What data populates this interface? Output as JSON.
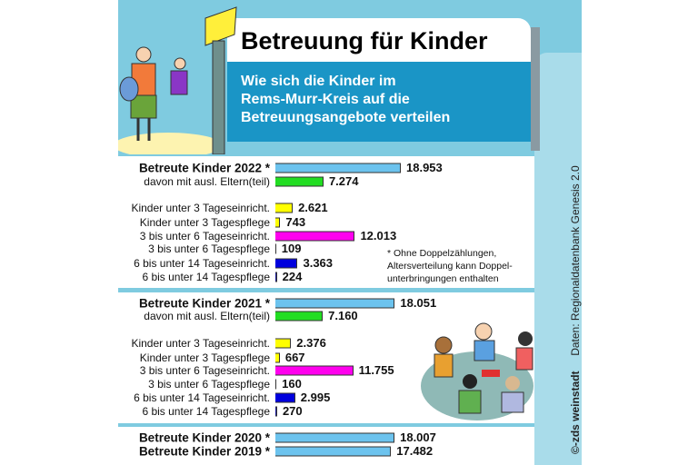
{
  "header": {
    "title": "Betreuung für Kinder",
    "subtitle_lines": [
      "Wie sich die Kinder im",
      "Rems-Murr-Kreis auf die",
      "Betreuungsangebote verteilen"
    ]
  },
  "footnote_lines": [
    "* Ohne Doppelzählungen,",
    "Altersverteilung kann Doppel-",
    "unterbringungen enthalten"
  ],
  "credit": "©-zds weinstadt",
  "source": "Daten: Regionaldatenbank Genesis 2.0",
  "colors": {
    "total": "#6cc3ee",
    "foreign": "#22dd22",
    "u3": "#ffff00",
    "age3to6": "#ff00ee",
    "age6to14": "#0000dd"
  },
  "chart_data": {
    "type": "bar",
    "orientation": "horizontal",
    "title": "Betreuung für Kinder",
    "categories": [
      "Betreute Kinder 2022 *",
      "davon mit ausl. Eltern(teil)",
      "Kinder unter 3 Tageseinricht.",
      "Kinder unter 3 Tagespflege",
      "3 bis unter 6 Tageseinricht.",
      "3 bis unter 6 Tagespflege",
      "6 bis unter 14 Tageseinricht.",
      "6 bis unter 14 Tagespflege",
      "Betreute Kinder 2021 *",
      "davon mit ausl. Eltern(teil)",
      "Kinder unter 3 Tageseinricht.",
      "Kinder unter 3 Tagespflege",
      "3 bis unter 6 Tageseinricht.",
      "3 bis unter 6 Tagespflege",
      "6 bis unter 14 Tageseinricht.",
      "6 bis unter 14 Tagespflege",
      "Betreute Kinder 2020 *",
      "Betreute Kinder 2019 *"
    ],
    "values": [
      18953,
      7274,
      2621,
      743,
      12013,
      109,
      3363,
      224,
      18051,
      7160,
      2376,
      667,
      11755,
      160,
      2995,
      270,
      18007,
      17482
    ],
    "value_labels": [
      "18.953",
      "7.274",
      "2.621",
      "743",
      "12.013",
      "109",
      "3.363",
      "224",
      "18.051",
      "7.160",
      "2.376",
      "667",
      "11.755",
      "160",
      "2.995",
      "270",
      "18.007",
      "17.482"
    ],
    "bar_colors": [
      "#6cc3ee",
      "#22dd22",
      "#ffff00",
      "#ffff00",
      "#ff00ee",
      "#aa22bb",
      "#0000dd",
      "#1a1a99",
      "#6cc3ee",
      "#22dd22",
      "#ffff00",
      "#ffff00",
      "#ff00ee",
      "#aa22bb",
      "#0000dd",
      "#1a1a99",
      "#6cc3ee",
      "#6cc3ee"
    ],
    "bold": [
      true,
      false,
      false,
      false,
      false,
      false,
      false,
      false,
      true,
      false,
      false,
      false,
      false,
      false,
      false,
      false,
      true,
      true
    ]
  }
}
